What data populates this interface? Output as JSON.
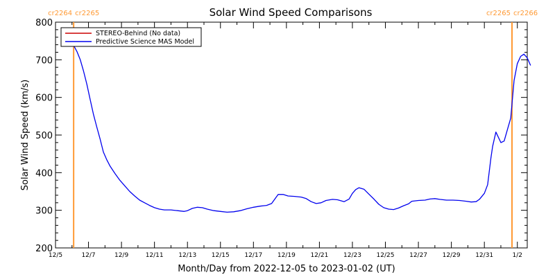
{
  "chart_data": {
    "type": "line",
    "title": "Solar Wind Speed Comparisons",
    "xlabel": "Month/Day from 2022-12-05 to 2023-01-02 (UT)",
    "ylabel": "Solar Wind Speed (km/s)",
    "x_unit": "day of period (0 = 12/5)",
    "xlim": [
      0,
      28.6
    ],
    "ylim": [
      200,
      800
    ],
    "yticks": [
      200,
      300,
      400,
      500,
      600,
      700,
      800
    ],
    "xticks": [
      {
        "x": 0,
        "label": "12/5"
      },
      {
        "x": 2,
        "label": "12/7"
      },
      {
        "x": 4,
        "label": "12/9"
      },
      {
        "x": 6,
        "label": "12/11"
      },
      {
        "x": 8,
        "label": "12/13"
      },
      {
        "x": 10,
        "label": "12/15"
      },
      {
        "x": 12,
        "label": "12/17"
      },
      {
        "x": 14,
        "label": "12/19"
      },
      {
        "x": 16,
        "label": "12/21"
      },
      {
        "x": 18,
        "label": "12/23"
      },
      {
        "x": 20,
        "label": "12/25"
      },
      {
        "x": 22,
        "label": "12/27"
      },
      {
        "x": 24,
        "label": "12/29"
      },
      {
        "x": 26,
        "label": "12/31"
      },
      {
        "x": 28,
        "label": "1/2"
      }
    ],
    "grid": false,
    "legend": {
      "position": "top-left",
      "entries": [
        {
          "name": "STEREO-Behind (No data)",
          "color": "#cc0000"
        },
        {
          "name": "Predictive Science MAS Model",
          "color": "#0000ee"
        }
      ]
    },
    "carrington_markers": [
      {
        "x": 1.1,
        "left_label": "cr2264",
        "right_label": "cr2265",
        "color": "#ff9933"
      },
      {
        "x": 28.7,
        "left_label": "cr2265",
        "right_label": "cr2266",
        "color": "#ff9933"
      }
    ],
    "series": [
      {
        "name": "Predictive Science MAS Model",
        "color": "#0000ee",
        "points": [
          [
            1.1,
            738
          ],
          [
            1.3,
            722
          ],
          [
            1.5,
            700
          ],
          [
            1.7,
            670
          ],
          [
            1.9,
            635
          ],
          [
            2.1,
            595
          ],
          [
            2.3,
            555
          ],
          [
            2.5,
            522
          ],
          [
            2.7,
            490
          ],
          [
            2.9,
            455
          ],
          [
            3.1,
            435
          ],
          [
            3.3,
            418
          ],
          [
            3.6,
            398
          ],
          [
            3.9,
            380
          ],
          [
            4.2,
            365
          ],
          [
            4.5,
            350
          ],
          [
            4.8,
            338
          ],
          [
            5.1,
            327
          ],
          [
            5.4,
            320
          ],
          [
            5.7,
            313
          ],
          [
            6.0,
            307
          ],
          [
            6.3,
            303
          ],
          [
            6.6,
            301
          ],
          [
            7.0,
            301
          ],
          [
            7.4,
            299
          ],
          [
            7.8,
            297
          ],
          [
            8.0,
            299
          ],
          [
            8.3,
            305
          ],
          [
            8.6,
            308
          ],
          [
            8.9,
            307
          ],
          [
            9.2,
            303
          ],
          [
            9.6,
            299
          ],
          [
            10.0,
            297
          ],
          [
            10.4,
            295
          ],
          [
            10.8,
            296
          ],
          [
            11.2,
            299
          ],
          [
            11.6,
            304
          ],
          [
            12.0,
            308
          ],
          [
            12.4,
            311
          ],
          [
            12.8,
            313
          ],
          [
            13.1,
            318
          ],
          [
            13.3,
            330
          ],
          [
            13.5,
            342
          ],
          [
            13.8,
            342
          ],
          [
            14.1,
            338
          ],
          [
            14.5,
            337
          ],
          [
            14.9,
            335
          ],
          [
            15.2,
            331
          ],
          [
            15.5,
            323
          ],
          [
            15.8,
            318
          ],
          [
            16.1,
            320
          ],
          [
            16.4,
            326
          ],
          [
            16.8,
            329
          ],
          [
            17.1,
            328
          ],
          [
            17.5,
            323
          ],
          [
            17.8,
            330
          ],
          [
            18.0,
            345
          ],
          [
            18.2,
            355
          ],
          [
            18.4,
            360
          ],
          [
            18.7,
            356
          ],
          [
            19.0,
            343
          ],
          [
            19.3,
            330
          ],
          [
            19.6,
            316
          ],
          [
            19.9,
            307
          ],
          [
            20.2,
            303
          ],
          [
            20.5,
            302
          ],
          [
            20.8,
            306
          ],
          [
            21.1,
            312
          ],
          [
            21.4,
            317
          ],
          [
            21.6,
            324
          ],
          [
            22.0,
            326
          ],
          [
            22.4,
            327
          ],
          [
            22.7,
            330
          ],
          [
            23.0,
            331
          ],
          [
            23.3,
            329
          ],
          [
            23.7,
            327
          ],
          [
            24.1,
            327
          ],
          [
            24.5,
            326
          ],
          [
            24.9,
            324
          ],
          [
            25.2,
            322
          ],
          [
            25.5,
            323
          ],
          [
            25.7,
            329
          ],
          [
            26.0,
            345
          ],
          [
            26.2,
            368
          ],
          [
            26.4,
            440
          ],
          [
            26.5,
            470
          ],
          [
            26.7,
            508
          ],
          [
            27.0,
            480
          ],
          [
            27.2,
            484
          ],
          [
            27.4,
            515
          ],
          [
            27.6,
            545
          ],
          [
            27.8,
            645
          ],
          [
            28.0,
            690
          ],
          [
            28.2,
            709
          ],
          [
            28.4,
            715
          ],
          [
            28.6,
            705
          ],
          [
            28.8,
            685
          ]
        ]
      }
    ]
  }
}
